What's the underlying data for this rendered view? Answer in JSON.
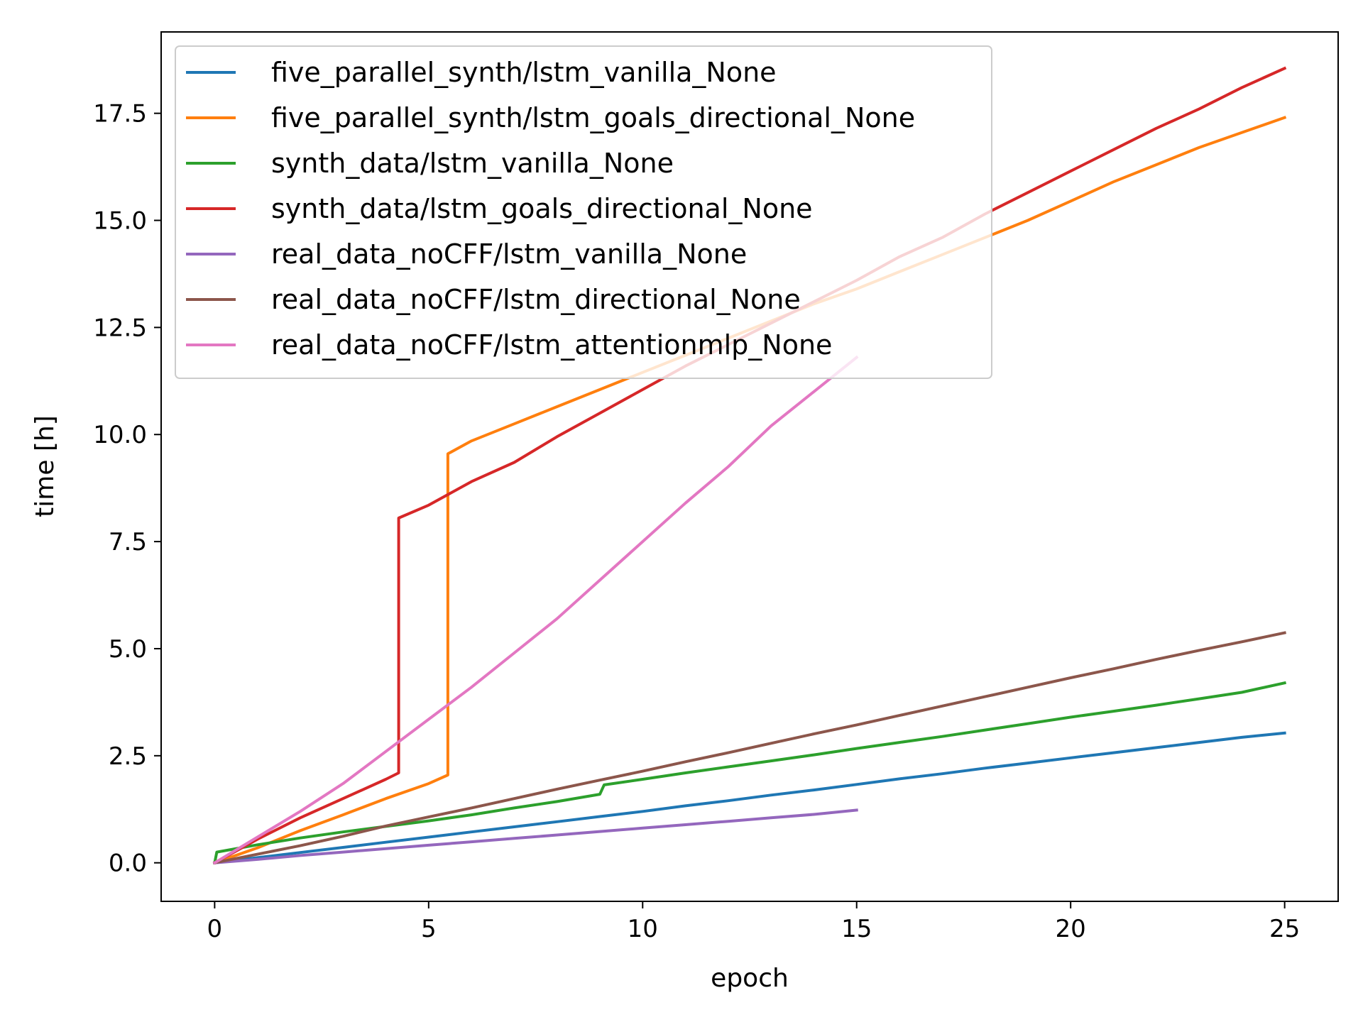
{
  "chart_data": {
    "type": "line",
    "title": "",
    "xlabel": "epoch",
    "ylabel": "time [h]",
    "xlim": [
      -1.25,
      26.25
    ],
    "ylim": [
      -0.9,
      19.4
    ],
    "xticks": [
      0,
      5,
      10,
      15,
      20,
      25
    ],
    "xtick_labels": [
      "0",
      "5",
      "10",
      "15",
      "20",
      "25"
    ],
    "yticks": [
      0,
      2.5,
      5,
      7.5,
      10,
      12.5,
      15,
      17.5
    ],
    "ytick_labels": [
      "0.0",
      "2.5",
      "5.0",
      "7.5",
      "10.0",
      "12.5",
      "15.0",
      "17.5"
    ],
    "grid": false,
    "legend_position": "top-left",
    "series": [
      {
        "name": "five_parallel_synth/lstm_vanilla_None",
        "color": "#1f77b4",
        "points": [
          [
            0,
            0
          ],
          [
            1,
            0.12
          ],
          [
            2,
            0.24
          ],
          [
            3,
            0.36
          ],
          [
            4,
            0.48
          ],
          [
            5,
            0.6
          ],
          [
            6,
            0.72
          ],
          [
            7,
            0.84
          ],
          [
            8,
            0.96
          ],
          [
            9,
            1.08
          ],
          [
            10,
            1.2
          ],
          [
            11,
            1.33
          ],
          [
            12,
            1.45
          ],
          [
            13,
            1.58
          ],
          [
            14,
            1.7
          ],
          [
            15,
            1.83
          ],
          [
            16,
            1.96
          ],
          [
            17,
            2.08
          ],
          [
            18,
            2.21
          ],
          [
            19,
            2.33
          ],
          [
            20,
            2.45
          ],
          [
            21,
            2.57
          ],
          [
            22,
            2.69
          ],
          [
            23,
            2.81
          ],
          [
            24,
            2.93
          ],
          [
            25,
            3.03
          ]
        ]
      },
      {
        "name": "five_parallel_synth/lstm_goals_directional_None",
        "color": "#ff7f0e",
        "points": [
          [
            0,
            0
          ],
          [
            1,
            0.35
          ],
          [
            2,
            0.75
          ],
          [
            3,
            1.12
          ],
          [
            4,
            1.5
          ],
          [
            5,
            1.85
          ],
          [
            5.45,
            2.05
          ],
          [
            5.45,
            9.55
          ],
          [
            6,
            9.85
          ],
          [
            7,
            10.25
          ],
          [
            8,
            10.65
          ],
          [
            9,
            11.05
          ],
          [
            10,
            11.45
          ],
          [
            11,
            11.85
          ],
          [
            12,
            12.25
          ],
          [
            13,
            12.65
          ],
          [
            14,
            13.05
          ],
          [
            15,
            13.4
          ],
          [
            16,
            13.8
          ],
          [
            17,
            14.2
          ],
          [
            18,
            14.6
          ],
          [
            19,
            15.0
          ],
          [
            20,
            15.45
          ],
          [
            21,
            15.9
          ],
          [
            22,
            16.3
          ],
          [
            23,
            16.7
          ],
          [
            24,
            17.05
          ],
          [
            25,
            17.4
          ]
        ]
      },
      {
        "name": "synth_data/lstm_vanilla_None",
        "color": "#2ca02c",
        "points": [
          [
            0,
            0
          ],
          [
            0.05,
            0.25
          ],
          [
            1,
            0.42
          ],
          [
            2,
            0.58
          ],
          [
            3,
            0.72
          ],
          [
            4,
            0.85
          ],
          [
            5,
            0.98
          ],
          [
            6,
            1.12
          ],
          [
            7,
            1.28
          ],
          [
            8,
            1.43
          ],
          [
            9,
            1.6
          ],
          [
            9.1,
            1.82
          ],
          [
            10,
            1.95
          ],
          [
            11,
            2.1
          ],
          [
            12,
            2.24
          ],
          [
            13,
            2.38
          ],
          [
            14,
            2.52
          ],
          [
            15,
            2.67
          ],
          [
            16,
            2.81
          ],
          [
            17,
            2.95
          ],
          [
            18,
            3.1
          ],
          [
            19,
            3.25
          ],
          [
            20,
            3.4
          ],
          [
            21,
            3.54
          ],
          [
            22,
            3.68
          ],
          [
            23,
            3.83
          ],
          [
            24,
            3.98
          ],
          [
            25,
            4.2
          ]
        ]
      },
      {
        "name": "synth_data/lstm_goals_directional_None",
        "color": "#d62728",
        "points": [
          [
            0,
            0
          ],
          [
            1,
            0.55
          ],
          [
            2,
            1.05
          ],
          [
            3,
            1.5
          ],
          [
            4,
            1.95
          ],
          [
            4.3,
            2.1
          ],
          [
            4.3,
            8.05
          ],
          [
            5,
            8.35
          ],
          [
            6,
            8.9
          ],
          [
            7,
            9.35
          ],
          [
            8,
            9.95
          ],
          [
            9,
            10.5
          ],
          [
            10,
            11.05
          ],
          [
            11,
            11.6
          ],
          [
            12,
            12.1
          ],
          [
            13,
            12.6
          ],
          [
            14,
            13.1
          ],
          [
            15,
            13.6
          ],
          [
            16,
            14.15
          ],
          [
            17,
            14.6
          ],
          [
            18,
            15.15
          ],
          [
            19,
            15.65
          ],
          [
            20,
            16.15
          ],
          [
            21,
            16.65
          ],
          [
            22,
            17.15
          ],
          [
            23,
            17.6
          ],
          [
            24,
            18.1
          ],
          [
            25,
            18.55
          ]
        ]
      },
      {
        "name": "real_data_noCFF/lstm_vanilla_None",
        "color": "#9467bd",
        "points": [
          [
            0,
            0
          ],
          [
            1,
            0.08
          ],
          [
            2,
            0.17
          ],
          [
            3,
            0.25
          ],
          [
            4,
            0.33
          ],
          [
            5,
            0.41
          ],
          [
            6,
            0.49
          ],
          [
            7,
            0.57
          ],
          [
            8,
            0.65
          ],
          [
            9,
            0.73
          ],
          [
            10,
            0.81
          ],
          [
            11,
            0.89
          ],
          [
            12,
            0.97
          ],
          [
            13,
            1.05
          ],
          [
            14,
            1.13
          ],
          [
            15,
            1.23
          ]
        ]
      },
      {
        "name": "real_data_noCFF/lstm_directional_None",
        "color": "#8c564b",
        "points": [
          [
            0,
            0
          ],
          [
            1,
            0.2
          ],
          [
            2,
            0.4
          ],
          [
            3,
            0.62
          ],
          [
            4,
            0.86
          ],
          [
            5,
            1.07
          ],
          [
            6,
            1.28
          ],
          [
            7,
            1.5
          ],
          [
            8,
            1.72
          ],
          [
            9,
            1.93
          ],
          [
            10,
            2.14
          ],
          [
            11,
            2.36
          ],
          [
            12,
            2.57
          ],
          [
            13,
            2.79
          ],
          [
            14,
            3.01
          ],
          [
            15,
            3.22
          ],
          [
            16,
            3.44
          ],
          [
            17,
            3.66
          ],
          [
            18,
            3.88
          ],
          [
            19,
            4.1
          ],
          [
            20,
            4.32
          ],
          [
            21,
            4.53
          ],
          [
            22,
            4.75
          ],
          [
            23,
            4.96
          ],
          [
            24,
            5.16
          ],
          [
            25,
            5.37
          ]
        ]
      },
      {
        "name": "real_data_noCFF/lstm_attentionmlp_None",
        "color": "#e377c2",
        "points": [
          [
            0,
            0
          ],
          [
            1,
            0.6
          ],
          [
            2,
            1.2
          ],
          [
            3,
            1.85
          ],
          [
            4,
            2.6
          ],
          [
            5,
            3.35
          ],
          [
            6,
            4.1
          ],
          [
            7,
            4.9
          ],
          [
            8,
            5.7
          ],
          [
            9,
            6.6
          ],
          [
            10,
            7.5
          ],
          [
            11,
            8.4
          ],
          [
            12,
            9.25
          ],
          [
            13,
            10.2
          ],
          [
            14,
            11.0
          ],
          [
            15,
            11.8
          ]
        ]
      }
    ]
  }
}
